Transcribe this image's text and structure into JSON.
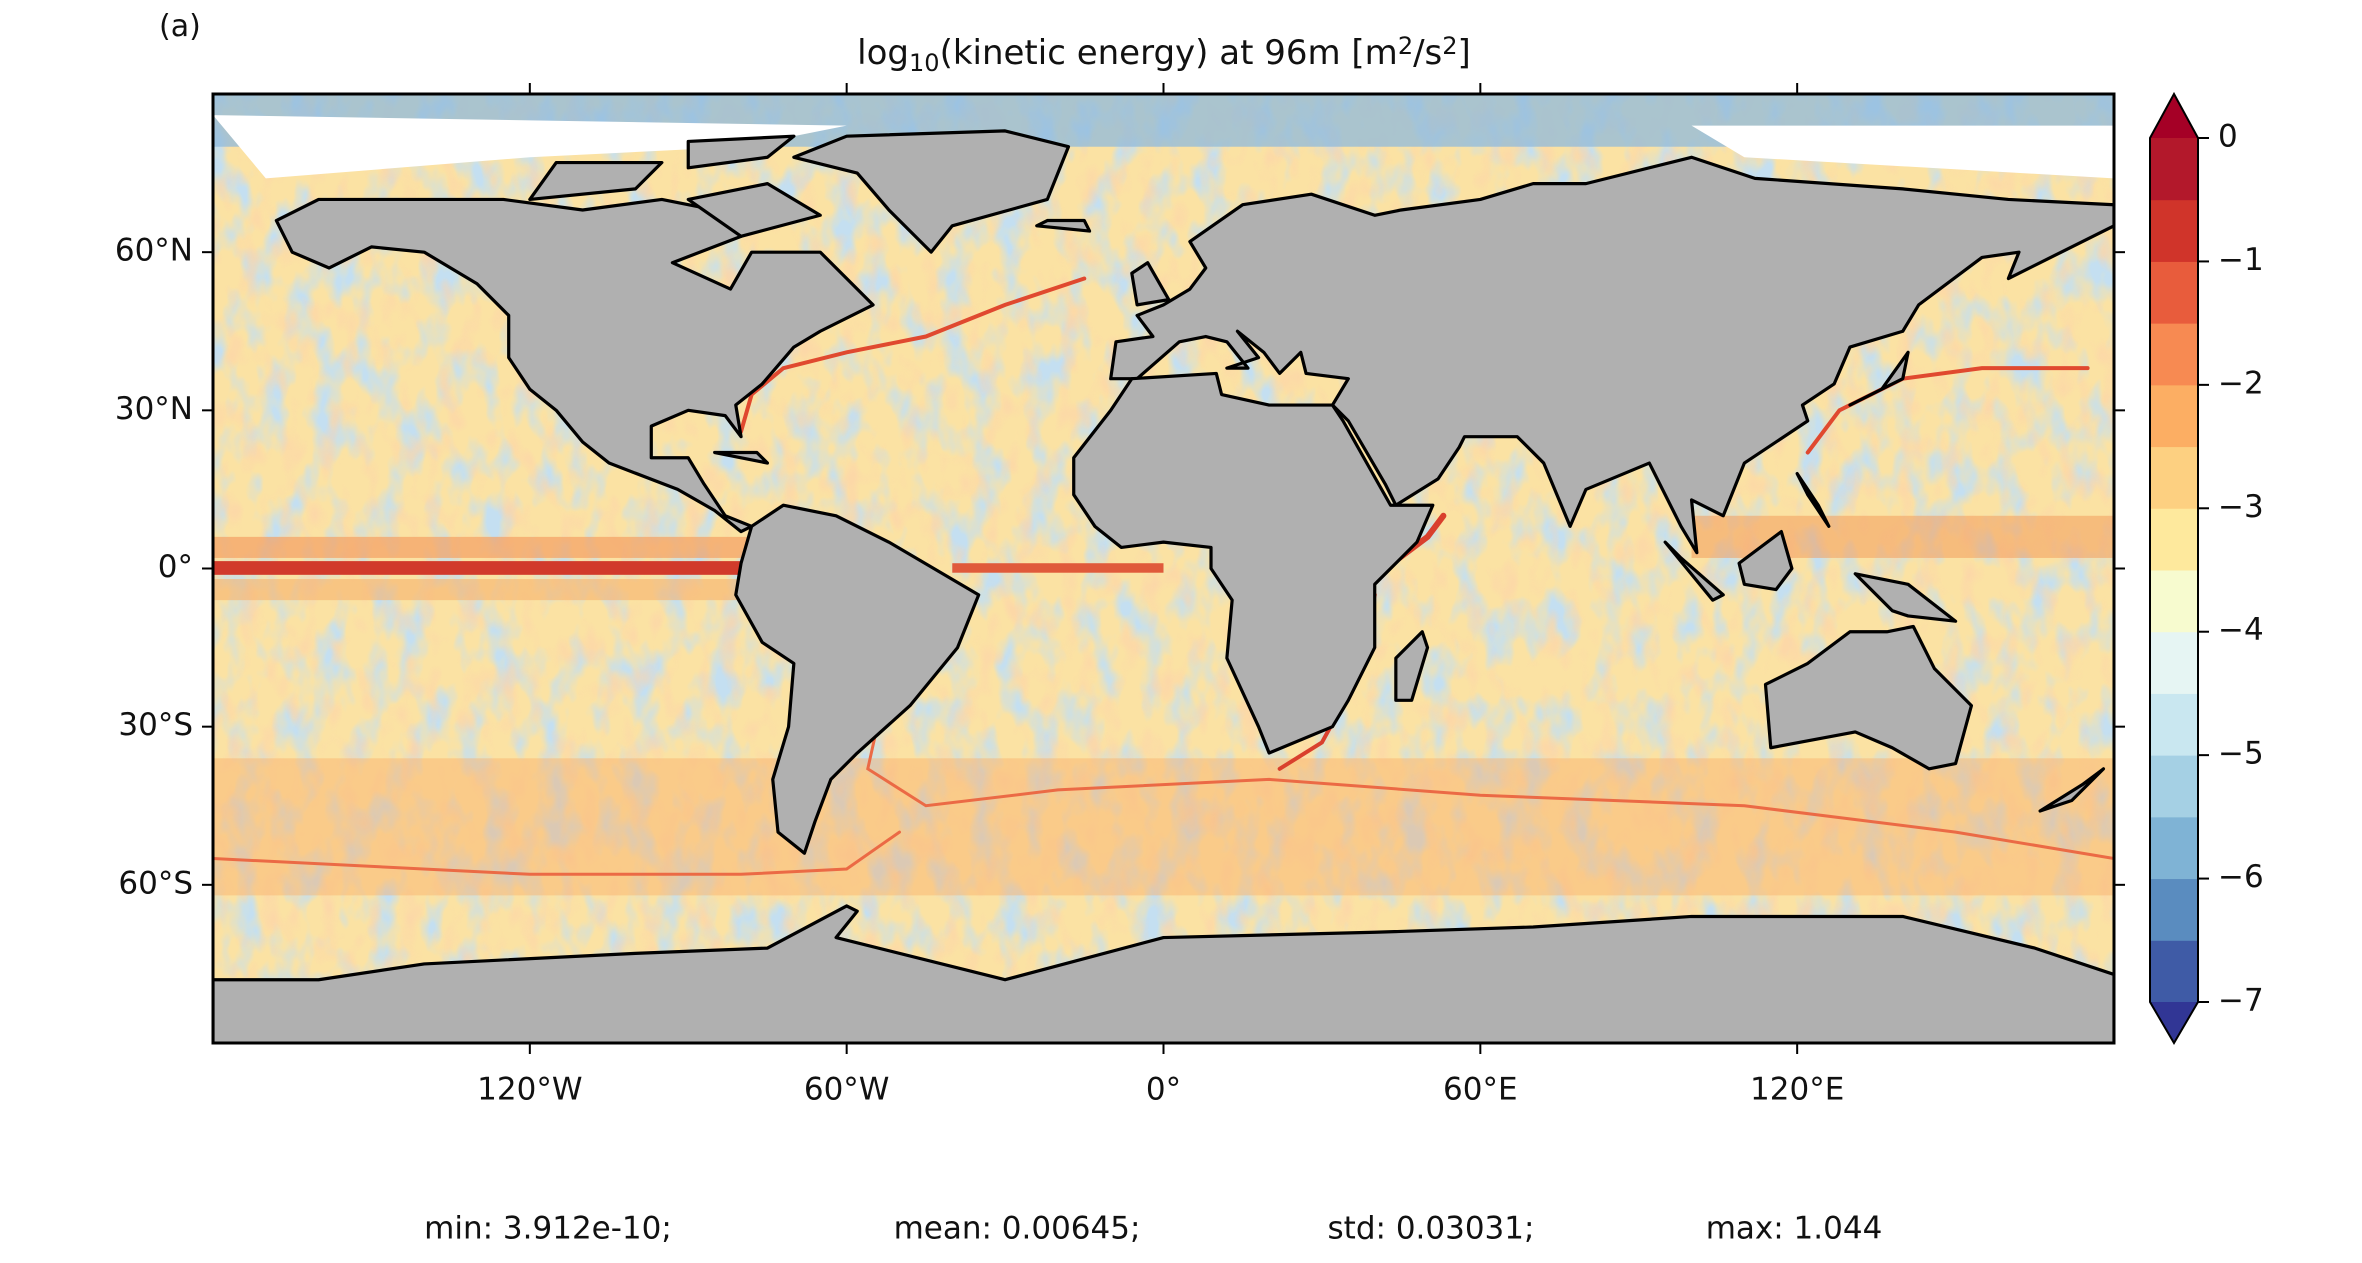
{
  "panel_label": "(a)",
  "title": [
    {
      "text": "log"
    },
    {
      "text": "10",
      "script": "sub"
    },
    {
      "text": "(kinetic energy) at 96m [m"
    },
    {
      "text": "2",
      "script": "sup"
    },
    {
      "text": "/s"
    },
    {
      "text": "2",
      "script": "sup"
    },
    {
      "text": "]"
    }
  ],
  "map": {
    "xlim": [
      -180,
      180
    ],
    "ylim": [
      -90,
      90
    ],
    "xticks": [
      {
        "value": -120,
        "label": "120°W"
      },
      {
        "value": -60,
        "label": "60°W"
      },
      {
        "value": 0,
        "label": "0°"
      },
      {
        "value": 60,
        "label": "60°E"
      },
      {
        "value": 120,
        "label": "120°E"
      }
    ],
    "yticks": [
      {
        "value": 60,
        "label": "60°N"
      },
      {
        "value": 30,
        "label": "30°N"
      },
      {
        "value": 0,
        "label": "0°"
      },
      {
        "value": -30,
        "label": "30°S"
      },
      {
        "value": -60,
        "label": "60°S"
      }
    ],
    "land_color": "#b0b0b0"
  },
  "colorbar": {
    "lim": [
      -7,
      0
    ],
    "ticks": [
      {
        "value": 0,
        "label": "0"
      },
      {
        "value": -1,
        "label": "−1"
      },
      {
        "value": -2,
        "label": "−2"
      },
      {
        "value": -3,
        "label": "−3"
      },
      {
        "value": -4,
        "label": "−4"
      },
      {
        "value": -5,
        "label": "−5"
      },
      {
        "value": -6,
        "label": "−6"
      },
      {
        "value": -7,
        "label": "−7"
      }
    ],
    "colors": [
      "#3f5ba6",
      "#5a8cbf",
      "#7fb3d5",
      "#a5d0e4",
      "#c9e7f0",
      "#e6f5f3",
      "#f7fbcf",
      "#fee99d",
      "#fdd081",
      "#fcae63",
      "#f78a52",
      "#e85c3c",
      "#d0342a",
      "#b3182b"
    ],
    "under_color": "#313695",
    "over_color": "#a50026"
  },
  "stats": [
    "min: 3.912e-10;",
    "mean: 0.00645;",
    "std: 0.03031;",
    "max: 1.044"
  ]
}
